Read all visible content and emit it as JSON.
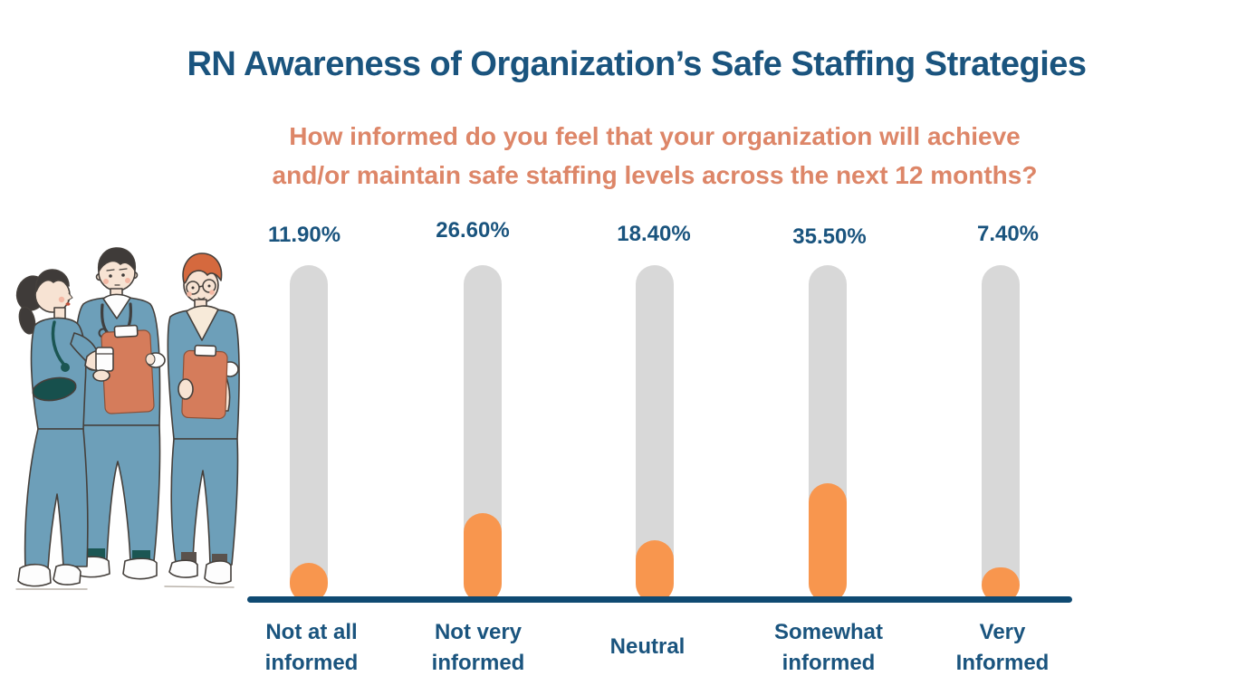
{
  "title": "RN Awareness of Organization’s Safe Staffing Strategies",
  "subtitle": {
    "line1": "How informed do you feel that your organization will achieve",
    "line2": "and/or maintain safe staffing levels across the next 12 months?"
  },
  "chart_data": {
    "type": "bar",
    "title": "RN Awareness of Organization’s Safe Staffing Strategies",
    "subtitle": "How informed do you feel that your organization will achieve and/or maintain safe staffing levels across the next 12 months?",
    "categories": [
      "Not at all informed",
      "Not very informed",
      "Neutral",
      "Somewhat informed",
      "Very Informed"
    ],
    "values": [
      11.9,
      26.6,
      18.4,
      35.5,
      7.4
    ],
    "value_labels": [
      "11.90%",
      "26.60%",
      "18.40%",
      "35.50%",
      "7.40%"
    ],
    "unit": "percent",
    "ylim": [
      0,
      100
    ],
    "grid": false,
    "legend": false,
    "orientation": "vertical",
    "bar_style": "rounded pill fill inside full-height gray track"
  },
  "columns": [
    {
      "value_label": "11.90%",
      "label_line1": "Not at all",
      "label_line2": "informed"
    },
    {
      "value_label": "26.60%",
      "label_line1": "Not very",
      "label_line2": "informed"
    },
    {
      "value_label": "18.40%",
      "label_line1": "Neutral",
      "label_line2": ""
    },
    {
      "value_label": "35.50%",
      "label_line1": "Somewhat",
      "label_line2": "informed"
    },
    {
      "value_label": "7.40%",
      "label_line1": "Very",
      "label_line2": "Informed"
    }
  ],
  "colors": {
    "title_navy": "#1a547e",
    "subtitle_salmon": "#dd8668",
    "bar_fill_orange": "#f8964e",
    "bar_track_gray": "#d8d8d8",
    "baseline_navy": "#0f4a72",
    "scrubs_blue": "#6d9fb9",
    "clipboard_salmon": "#d57c5b",
    "accent_teal": "#1b5653"
  },
  "illustration": {
    "name": "three-nurses-with-clipboards"
  }
}
